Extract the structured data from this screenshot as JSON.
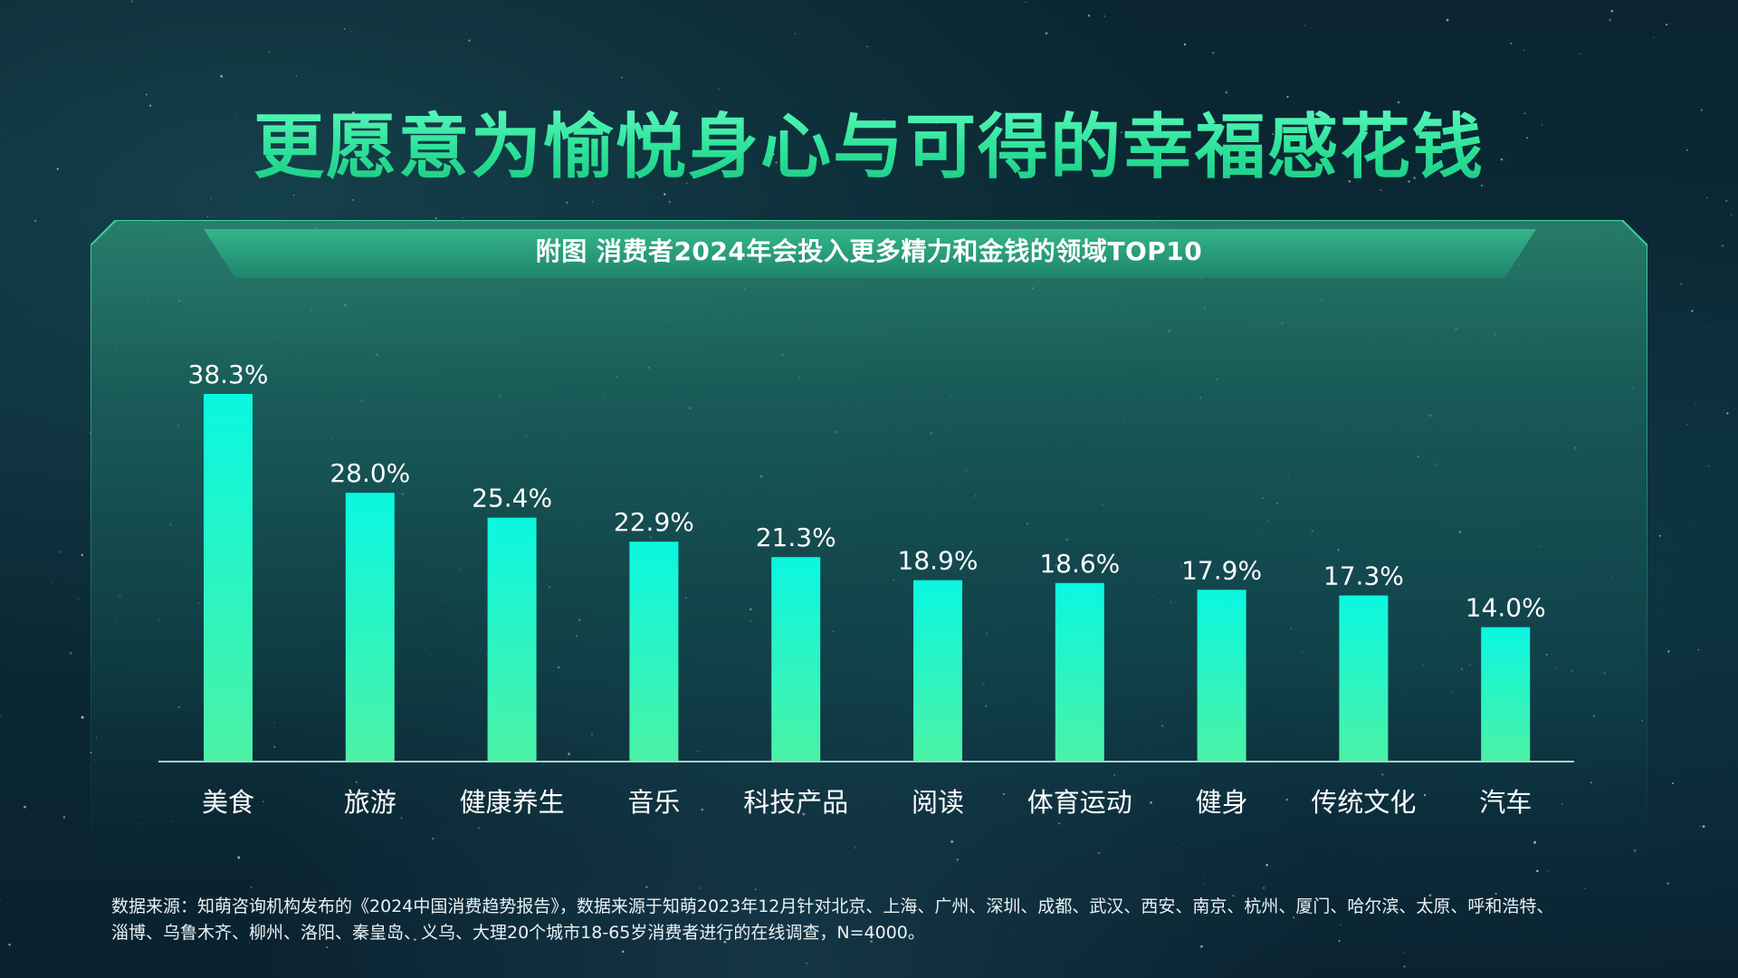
{
  "page": {
    "title": "更愿意为愉悦身心与可得的幸福感花钱",
    "footnote_line1": "数据来源：知萌咨询机构发布的《2024中国消费趋势报告》，数据来源于知萌2023年12月针对北京、上海、广州、深圳、成都、武汉、西安、南京、杭州、厦门、哈尔滨、太原、呼和浩特、",
    "footnote_line2": "淄博、乌鲁木齐、柳州、洛阳、秦皇岛、义乌、大理20个城市18-65岁消费者进行的在线调查，N=4000。"
  },
  "colors": {
    "title": "#3ff0a6",
    "bar_top": "#0af7e1",
    "bar_bottom": "#4cf2a5",
    "axis": "#9fd3c9",
    "panel_fill": "#1d6b62",
    "label_text": "#ffffff"
  },
  "chart_data": {
    "type": "bar",
    "title": "附图  消费者2024年会投入更多精力和金钱的领域TOP10",
    "categories": [
      "美食",
      "旅游",
      "健康养生",
      "音乐",
      "科技产品",
      "阅读",
      "体育运动",
      "健身",
      "传统文化",
      "汽车"
    ],
    "values": [
      38.3,
      28.0,
      25.4,
      22.9,
      21.3,
      18.9,
      18.6,
      17.9,
      17.3,
      14.0
    ],
    "value_labels": [
      "38.3%",
      "28.0%",
      "25.4%",
      "22.9%",
      "21.3%",
      "18.9%",
      "18.6%",
      "17.9%",
      "17.3%",
      "14.0%"
    ],
    "unit": "%",
    "ylim": [
      0,
      38.3
    ],
    "grid": false,
    "legend": "none",
    "xlabel": "",
    "ylabel": ""
  }
}
